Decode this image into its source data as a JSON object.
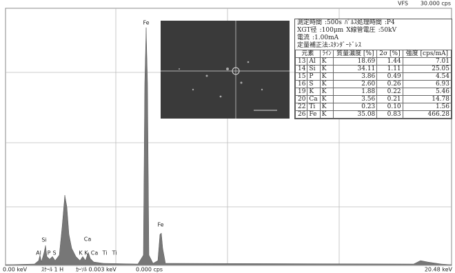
{
  "header": {
    "mode": "VFS",
    "full_scale": "30.000 cps"
  },
  "peak_labels": [
    "Fe",
    "Fe",
    "Si",
    "Al",
    "P",
    "S",
    "Ca",
    "K",
    "K",
    "Ca",
    "Ti",
    "Ti"
  ],
  "footer": {
    "start": "0.00 keV",
    "scale": "ｽｹｰﾙ 1 H",
    "cursor": "ｶｰｿﾙ 0.003 keV",
    "cursor_cps": "0.000 cps",
    "end": "20.48 keV"
  },
  "info": {
    "lines": [
      [
        "測定時間",
        ":500s",
        "ﾊﾟﾙｽ処理時間",
        ":P4"
      ],
      [
        "XGT径",
        ":100μm",
        "X線管電圧",
        ":50kV"
      ],
      [
        "電流",
        ":1.00mA"
      ],
      [
        "定量補正法:ｽﾀﾝﾀﾞｰﾄﾞﾚｽ"
      ]
    ],
    "table": {
      "header": [
        "元素",
        "ﾗｲﾝ",
        "質量濃度 [%]",
        "2σ [%]",
        "強度 [cps/mA]"
      ],
      "rows": [
        [
          "13",
          "Al",
          "K",
          "18.69",
          "1.44",
          "7.01"
        ],
        [
          "14",
          "Si",
          "K",
          "34.11",
          "1.11",
          "25.05"
        ],
        [
          "15",
          "P",
          "K",
          "3.86",
          "0.49",
          "4.54"
        ],
        [
          "16",
          "S",
          "K",
          "2.60",
          "0.26",
          "6.93"
        ],
        [
          "19",
          "K",
          "K",
          "1.88",
          "0.22",
          "5.46"
        ],
        [
          "20",
          "Ca",
          "K",
          "3.56",
          "0.21",
          "14.78"
        ],
        [
          "22",
          "Ti",
          "K",
          "0.23",
          "0.10",
          "1.56"
        ],
        [
          "26",
          "Fe",
          "K",
          "35.08",
          "0.83",
          "466.28"
        ]
      ]
    }
  }
}
